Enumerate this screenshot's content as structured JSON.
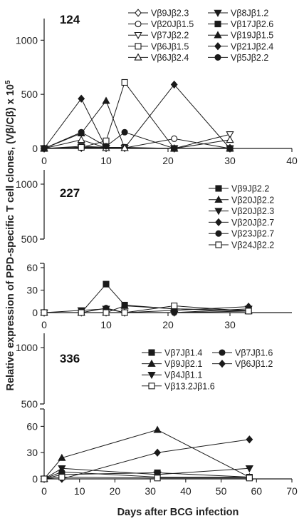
{
  "figure": {
    "ylabel": "Relative expression of PPD-specific T cell clones, (Vβ/Cβ) x 10",
    "ylabel_sup": "5",
    "xlabel": "Days after BCG infection"
  },
  "chart_data": [
    {
      "type": "line",
      "panel_label": "124",
      "xlim": [
        0,
        40
      ],
      "xticks": [
        0,
        10,
        20,
        30,
        40
      ],
      "yticks": [
        0,
        500,
        1000
      ],
      "ylim": [
        0,
        1200
      ],
      "series": [
        {
          "name": "Vβ9Jβ2.3",
          "marker": "diamond-open",
          "points": [
            [
              0,
              0
            ],
            [
              6,
              5
            ],
            [
              10,
              5
            ],
            [
              13,
              5
            ],
            [
              21,
              0
            ],
            [
              30,
              5
            ]
          ]
        },
        {
          "name": "Vβ8Jβ1.2",
          "marker": "triangle-down-filled",
          "points": [
            [
              0,
              0
            ],
            [
              6,
              10
            ],
            [
              10,
              5
            ],
            [
              13,
              5
            ],
            [
              21,
              0
            ],
            [
              30,
              0
            ]
          ]
        },
        {
          "name": "Vβ20Jβ1.5",
          "marker": "circle-open",
          "points": [
            [
              0,
              0
            ],
            [
              6,
              10
            ],
            [
              10,
              10
            ],
            [
              13,
              5
            ],
            [
              21,
              90
            ],
            [
              30,
              0
            ]
          ]
        },
        {
          "name": "Vβ17Jβ2.6",
          "marker": "square-filled",
          "points": [
            [
              0,
              0
            ],
            [
              6,
              20
            ],
            [
              10,
              10
            ],
            [
              13,
              10
            ],
            [
              21,
              0
            ],
            [
              30,
              0
            ]
          ]
        },
        {
          "name": "Vβ7Jβ2.2",
          "marker": "triangle-down-open",
          "points": [
            [
              0,
              0
            ],
            [
              6,
              5
            ],
            [
              10,
              5
            ],
            [
              13,
              5
            ],
            [
              21,
              0
            ],
            [
              30,
              130
            ]
          ]
        },
        {
          "name": "Vβ19Jβ1.5",
          "marker": "triangle-up-filled",
          "points": [
            [
              0,
              0
            ],
            [
              6,
              140
            ],
            [
              10,
              440
            ],
            [
              13,
              5
            ],
            [
              21,
              0
            ],
            [
              30,
              0
            ]
          ]
        },
        {
          "name": "Vβ6Jβ1.5",
          "marker": "square-open",
          "points": [
            [
              0,
              0
            ],
            [
              6,
              10
            ],
            [
              10,
              70
            ],
            [
              13,
              610
            ],
            [
              21,
              0
            ],
            [
              30,
              0
            ]
          ]
        },
        {
          "name": "Vβ21Jβ2.4",
          "marker": "diamond-filled",
          "points": [
            [
              0,
              0
            ],
            [
              6,
              460
            ],
            [
              10,
              5
            ],
            [
              13,
              5
            ],
            [
              21,
              590
            ],
            [
              30,
              0
            ]
          ]
        },
        {
          "name": "Vβ6Jβ2.4",
          "marker": "triangle-up-open",
          "points": [
            [
              0,
              0
            ],
            [
              6,
              80
            ],
            [
              10,
              5
            ],
            [
              13,
              5
            ],
            [
              21,
              0
            ],
            [
              30,
              80
            ]
          ]
        },
        {
          "name": "Vβ5Jβ2.2",
          "marker": "circle-filled",
          "points": [
            [
              0,
              0
            ],
            [
              6,
              150
            ],
            [
              10,
              20
            ],
            [
              13,
              150
            ],
            [
              21,
              0
            ],
            [
              30,
              0
            ]
          ]
        }
      ]
    },
    {
      "type": "line",
      "panel_label": "227",
      "xlim": [
        0,
        40
      ],
      "xticks": [
        0,
        10,
        20,
        30
      ],
      "axis_break": true,
      "lower_ylim": [
        0,
        60
      ],
      "lower_yticks": [
        0,
        30,
        60
      ],
      "upper_ylim": [
        500,
        1000
      ],
      "upper_yticks": [
        500,
        1000
      ],
      "series": [
        {
          "name": "Vβ9Jβ2.2",
          "marker": "square-filled",
          "points": [
            [
              0,
              0
            ],
            [
              6,
              0
            ],
            [
              10,
              38
            ],
            [
              13,
              10
            ],
            [
              21,
              5
            ],
            [
              33,
              3
            ]
          ]
        },
        {
          "name": "Vβ20Jβ2.2",
          "marker": "triangle-up-filled",
          "points": [
            [
              0,
              0
            ],
            [
              6,
              0
            ],
            [
              10,
              0
            ],
            [
              13,
              9
            ],
            [
              21,
              5
            ],
            [
              33,
              2
            ]
          ]
        },
        {
          "name": "Vβ20Jβ2.3",
          "marker": "triangle-down-filled",
          "points": [
            [
              0,
              0
            ],
            [
              6,
              3
            ],
            [
              10,
              5
            ],
            [
              13,
              0
            ],
            [
              21,
              0
            ],
            [
              33,
              5
            ]
          ]
        },
        {
          "name": "Vβ20Jβ2.7",
          "marker": "diamond-filled",
          "points": [
            [
              0,
              0
            ],
            [
              6,
              0
            ],
            [
              10,
              0
            ],
            [
              13,
              0
            ],
            [
              21,
              3
            ],
            [
              33,
              8
            ]
          ]
        },
        {
          "name": "Vβ23Jβ2.7",
          "marker": "circle-filled",
          "points": [
            [
              0,
              0
            ],
            [
              6,
              0
            ],
            [
              10,
              6
            ],
            [
              13,
              0
            ],
            [
              21,
              0
            ],
            [
              33,
              2
            ]
          ]
        },
        {
          "name": "Vβ24Jβ2.2",
          "marker": "square-open",
          "points": [
            [
              0,
              0
            ],
            [
              6,
              0
            ],
            [
              10,
              0
            ],
            [
              13,
              0
            ],
            [
              21,
              9
            ],
            [
              33,
              2
            ]
          ]
        }
      ]
    },
    {
      "type": "line",
      "panel_label": "336",
      "xlim": [
        0,
        70
      ],
      "xticks": [
        0,
        10,
        20,
        30,
        40,
        50,
        60,
        70
      ],
      "axis_break": true,
      "lower_ylim": [
        0,
        75
      ],
      "lower_yticks": [
        0,
        30,
        60
      ],
      "upper_ylim": [
        500,
        1000
      ],
      "upper_yticks": [
        500,
        1000
      ],
      "series": [
        {
          "name": "Vβ7Jβ1.4",
          "marker": "square-filled",
          "points": [
            [
              0,
              0
            ],
            [
              5,
              5
            ],
            [
              32,
              7
            ],
            [
              58,
              2
            ]
          ]
        },
        {
          "name": "Vβ7Jβ1.6",
          "marker": "circle-filled",
          "points": [
            [
              0,
              0
            ],
            [
              5,
              8
            ],
            [
              32,
              2
            ],
            [
              58,
              2
            ]
          ]
        },
        {
          "name": "Vβ9Jβ2.1",
          "marker": "triangle-up-filled",
          "points": [
            [
              0,
              0
            ],
            [
              5,
              24
            ],
            [
              32,
              56
            ],
            [
              58,
              2
            ]
          ]
        },
        {
          "name": "Vβ6Jβ1.2",
          "marker": "diamond-filled",
          "points": [
            [
              0,
              0
            ],
            [
              5,
              0
            ],
            [
              32,
              30
            ],
            [
              58,
              45
            ]
          ]
        },
        {
          "name": "Vβ4Jβ1.1",
          "marker": "triangle-down-filled",
          "points": [
            [
              0,
              0
            ],
            [
              5,
              12
            ],
            [
              32,
              5
            ],
            [
              58,
              12
            ]
          ]
        },
        {
          "name": "Vβ13.2Jβ1.6",
          "marker": "square-open",
          "points": [
            [
              0,
              0
            ],
            [
              5,
              2
            ],
            [
              32,
              1
            ],
            [
              58,
              1
            ]
          ]
        }
      ]
    }
  ]
}
